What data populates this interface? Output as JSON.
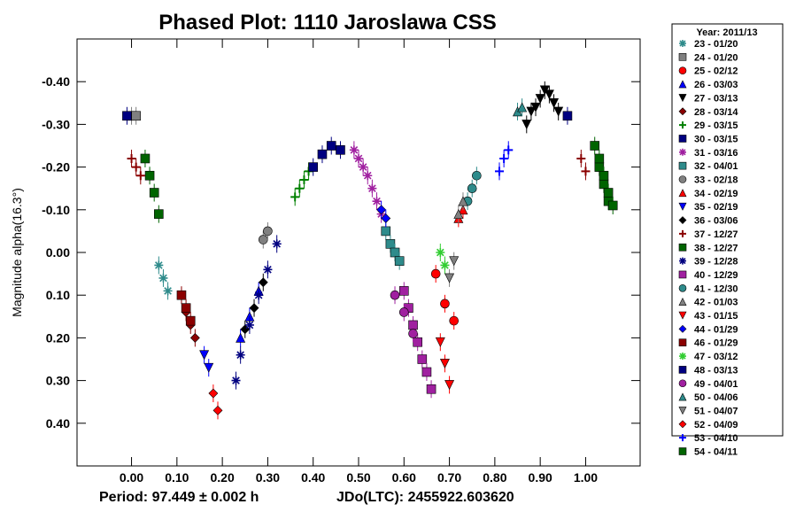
{
  "chart_data": {
    "type": "scatter",
    "title": "Phased Plot: 1110 Jaroslawa CSS",
    "ylabel": "Magnitude alpha(16.3°)",
    "xlabel": "",
    "xlim": [
      -0.12,
      1.12
    ],
    "ylim": [
      -0.5,
      0.5
    ],
    "y_inverted": true,
    "x_ticks": [
      "0.00",
      "0.10",
      "0.20",
      "0.30",
      "0.40",
      "0.50",
      "0.60",
      "0.70",
      "0.80",
      "0.90",
      "1.00"
    ],
    "x_tick_values": [
      0.0,
      0.1,
      0.2,
      0.3,
      0.4,
      0.5,
      0.6,
      0.7,
      0.8,
      0.9,
      1.0
    ],
    "y_ticks": [
      "-0.40",
      "-0.30",
      "-0.20",
      "-0.10",
      "0.00",
      "0.10",
      "0.20",
      "0.30",
      "0.40"
    ],
    "y_tick_values": [
      -0.4,
      -0.3,
      -0.2,
      -0.1,
      0.0,
      0.1,
      0.2,
      0.3,
      0.4
    ],
    "footer_period": "Period: 97.449 ± 0.002 h",
    "footer_jdo": "JDo(LTC): 2455922.603620",
    "legend_title": "Year: 2011/13",
    "legend_position": "right",
    "series": [
      {
        "name": "23 - 01/20",
        "marker": "star",
        "color": "#2e8b8b",
        "points": [
          [
            0.06,
            0.03
          ],
          [
            0.07,
            0.06
          ],
          [
            0.08,
            0.09
          ]
        ]
      },
      {
        "name": "24 - 01/20",
        "marker": "square",
        "color": "#808080",
        "points": [
          [
            0.0,
            -0.32
          ],
          [
            0.01,
            -0.32
          ]
        ]
      },
      {
        "name": "25 - 02/12",
        "marker": "circle",
        "color": "#ff0000",
        "points": [
          [
            0.67,
            0.05
          ],
          [
            0.69,
            0.12
          ],
          [
            0.71,
            0.16
          ]
        ]
      },
      {
        "name": "26 - 03/03",
        "marker": "triangle",
        "color": "#0000ff",
        "points": [
          [
            0.24,
            0.2
          ],
          [
            0.26,
            0.15
          ],
          [
            0.28,
            0.09
          ]
        ]
      },
      {
        "name": "27 - 03/13",
        "marker": "triangle-down",
        "color": "#000000",
        "points": [
          [
            0.87,
            -0.3
          ],
          [
            0.88,
            -0.33
          ],
          [
            0.89,
            -0.34
          ],
          [
            0.9,
            -0.36
          ],
          [
            0.91,
            -0.38
          ],
          [
            0.92,
            -0.37
          ],
          [
            0.93,
            -0.35
          ],
          [
            0.94,
            -0.33
          ]
        ]
      },
      {
        "name": "28 - 03/14",
        "marker": "diamond",
        "color": "#8b0000",
        "points": [
          [
            0.12,
            0.14
          ],
          [
            0.13,
            0.17
          ],
          [
            0.14,
            0.2
          ]
        ]
      },
      {
        "name": "29 - 03/15",
        "marker": "plus",
        "color": "#008000",
        "points": [
          [
            0.36,
            -0.13
          ],
          [
            0.37,
            -0.15
          ],
          [
            0.38,
            -0.17
          ],
          [
            0.39,
            -0.19
          ]
        ]
      },
      {
        "name": "30 - 03/15",
        "marker": "square",
        "color": "#000080",
        "points": [
          [
            -0.01,
            -0.32
          ],
          [
            0.96,
            -0.32
          ]
        ]
      },
      {
        "name": "31 - 03/16",
        "marker": "star",
        "color": "#a020a0",
        "points": [
          [
            0.49,
            -0.24
          ],
          [
            0.5,
            -0.22
          ],
          [
            0.51,
            -0.2
          ],
          [
            0.52,
            -0.18
          ],
          [
            0.53,
            -0.15
          ],
          [
            0.54,
            -0.12
          ],
          [
            0.55,
            -0.09
          ]
        ]
      },
      {
        "name": "32 - 04/01",
        "marker": "square",
        "color": "#2e8b8b",
        "points": [
          [
            0.56,
            -0.05
          ],
          [
            0.57,
            -0.02
          ],
          [
            0.58,
            0.0
          ],
          [
            0.59,
            0.02
          ]
        ]
      },
      {
        "name": "33 - 02/18",
        "marker": "circle",
        "color": "#808080",
        "points": [
          [
            0.29,
            -0.03
          ],
          [
            0.3,
            -0.05
          ]
        ]
      },
      {
        "name": "34 - 02/19",
        "marker": "triangle",
        "color": "#ff0000",
        "points": [
          [
            0.72,
            -0.08
          ],
          [
            0.73,
            -0.1
          ]
        ]
      },
      {
        "name": "35 - 02/19",
        "marker": "triangle-down",
        "color": "#0000ff",
        "points": [
          [
            0.16,
            0.24
          ],
          [
            0.17,
            0.27
          ]
        ]
      },
      {
        "name": "36 - 03/06",
        "marker": "diamond",
        "color": "#000000",
        "points": [
          [
            0.25,
            0.18
          ],
          [
            0.27,
            0.13
          ],
          [
            0.29,
            0.07
          ]
        ]
      },
      {
        "name": "37 - 12/27",
        "marker": "plus",
        "color": "#8b0000",
        "points": [
          [
            0.0,
            -0.22
          ],
          [
            0.01,
            -0.2
          ],
          [
            0.02,
            -0.18
          ],
          [
            0.99,
            -0.22
          ],
          [
            1.0,
            -0.19
          ]
        ]
      },
      {
        "name": "38 - 12/27",
        "marker": "square",
        "color": "#006400",
        "points": [
          [
            0.03,
            -0.22
          ],
          [
            0.04,
            -0.18
          ],
          [
            0.05,
            -0.14
          ],
          [
            0.06,
            -0.09
          ],
          [
            1.03,
            -0.2
          ],
          [
            1.04,
            -0.16
          ],
          [
            1.05,
            -0.12
          ]
        ]
      },
      {
        "name": "39 - 12/28",
        "marker": "star",
        "color": "#000080",
        "points": [
          [
            0.23,
            0.3
          ],
          [
            0.24,
            0.24
          ],
          [
            0.26,
            0.17
          ],
          [
            0.28,
            0.1
          ],
          [
            0.3,
            0.04
          ],
          [
            0.32,
            -0.02
          ]
        ]
      },
      {
        "name": "40 - 12/29",
        "marker": "square",
        "color": "#a020a0",
        "points": [
          [
            0.6,
            0.09
          ],
          [
            0.61,
            0.13
          ],
          [
            0.62,
            0.17
          ],
          [
            0.63,
            0.21
          ],
          [
            0.64,
            0.25
          ],
          [
            0.65,
            0.28
          ],
          [
            0.66,
            0.32
          ]
        ]
      },
      {
        "name": "41 - 12/30",
        "marker": "circle",
        "color": "#2e8b8b",
        "points": [
          [
            0.74,
            -0.12
          ],
          [
            0.75,
            -0.15
          ],
          [
            0.76,
            -0.18
          ]
        ]
      },
      {
        "name": "42 - 01/03",
        "marker": "triangle",
        "color": "#808080",
        "points": [
          [
            0.72,
            -0.09
          ],
          [
            0.73,
            -0.12
          ]
        ]
      },
      {
        "name": "43 - 01/15",
        "marker": "triangle-down",
        "color": "#ff0000",
        "points": [
          [
            0.68,
            0.21
          ],
          [
            0.69,
            0.26
          ],
          [
            0.7,
            0.31
          ]
        ]
      },
      {
        "name": "44 - 01/29",
        "marker": "diamond",
        "color": "#0000ff",
        "points": [
          [
            0.55,
            -0.1
          ],
          [
            0.56,
            -0.08
          ]
        ]
      },
      {
        "name": "46 - 01/29",
        "marker": "square",
        "color": "#8b0000",
        "points": [
          [
            0.11,
            0.1
          ],
          [
            0.12,
            0.13
          ],
          [
            0.13,
            0.16
          ]
        ]
      },
      {
        "name": "47 - 03/12",
        "marker": "star",
        "color": "#32cd32",
        "points": [
          [
            0.68,
            0.0
          ],
          [
            0.69,
            0.03
          ]
        ]
      },
      {
        "name": "48 - 03/13",
        "marker": "square",
        "color": "#000080",
        "points": [
          [
            0.4,
            -0.2
          ],
          [
            0.42,
            -0.23
          ],
          [
            0.44,
            -0.25
          ],
          [
            0.46,
            -0.24
          ]
        ]
      },
      {
        "name": "49 - 04/01",
        "marker": "circle",
        "color": "#a020a0",
        "points": [
          [
            0.58,
            0.1
          ],
          [
            0.6,
            0.14
          ],
          [
            0.62,
            0.19
          ]
        ]
      },
      {
        "name": "50 - 04/06",
        "marker": "triangle",
        "color": "#2e8b8b",
        "points": [
          [
            0.85,
            -0.33
          ],
          [
            0.86,
            -0.34
          ]
        ]
      },
      {
        "name": "51 - 04/07",
        "marker": "triangle-down",
        "color": "#808080",
        "points": [
          [
            0.7,
            0.06
          ],
          [
            0.71,
            0.02
          ]
        ]
      },
      {
        "name": "52 - 04/09",
        "marker": "diamond",
        "color": "#ff0000",
        "points": [
          [
            0.19,
            0.37
          ],
          [
            0.18,
            0.33
          ]
        ]
      },
      {
        "name": "53 - 04/10",
        "marker": "plus",
        "color": "#0000ff",
        "points": [
          [
            0.81,
            -0.19
          ],
          [
            0.82,
            -0.22
          ],
          [
            0.83,
            -0.24
          ]
        ]
      },
      {
        "name": "54 - 04/11",
        "marker": "square",
        "color": "#006400",
        "points": [
          [
            1.02,
            -0.25
          ],
          [
            1.03,
            -0.22
          ],
          [
            1.04,
            -0.18
          ],
          [
            1.05,
            -0.14
          ],
          [
            1.06,
            -0.11
          ]
        ]
      }
    ]
  }
}
